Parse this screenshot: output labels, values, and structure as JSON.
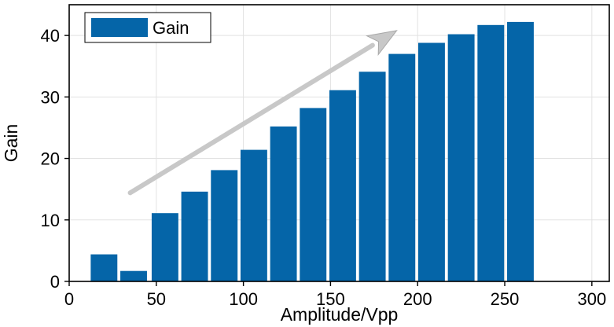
{
  "chart_data": {
    "type": "bar",
    "x": [
      20,
      37,
      55,
      72,
      89,
      106,
      123,
      140,
      157,
      174,
      191,
      208,
      225,
      242,
      259,
      276,
      293
    ],
    "series": [
      {
        "name": "Gain",
        "values": [
          4.4,
          1.7,
          11.1,
          14.6,
          18.1,
          21.4,
          25.2,
          28.2,
          31.1,
          34.1,
          37.0,
          38.8,
          40.2,
          41.7,
          42.2,
          0,
          0
        ]
      }
    ],
    "xlabel": "Amplitude/Vpp",
    "ylabel": "Gain",
    "xlim": [
      0,
      310
    ],
    "ylim": [
      0,
      45
    ],
    "xticks": [
      0,
      50,
      100,
      150,
      200,
      250,
      300
    ],
    "yticks": [
      0,
      10,
      20,
      30,
      40
    ],
    "grid": true,
    "legend": "top-left",
    "colors": {
      "bar": "#0565a8",
      "arrow": "#c8c8c8",
      "grid": "#e2e2e2"
    },
    "annotation": {
      "type": "arrow",
      "from": [
        35,
        14.4
      ],
      "to": [
        188,
        40.8
      ]
    }
  }
}
